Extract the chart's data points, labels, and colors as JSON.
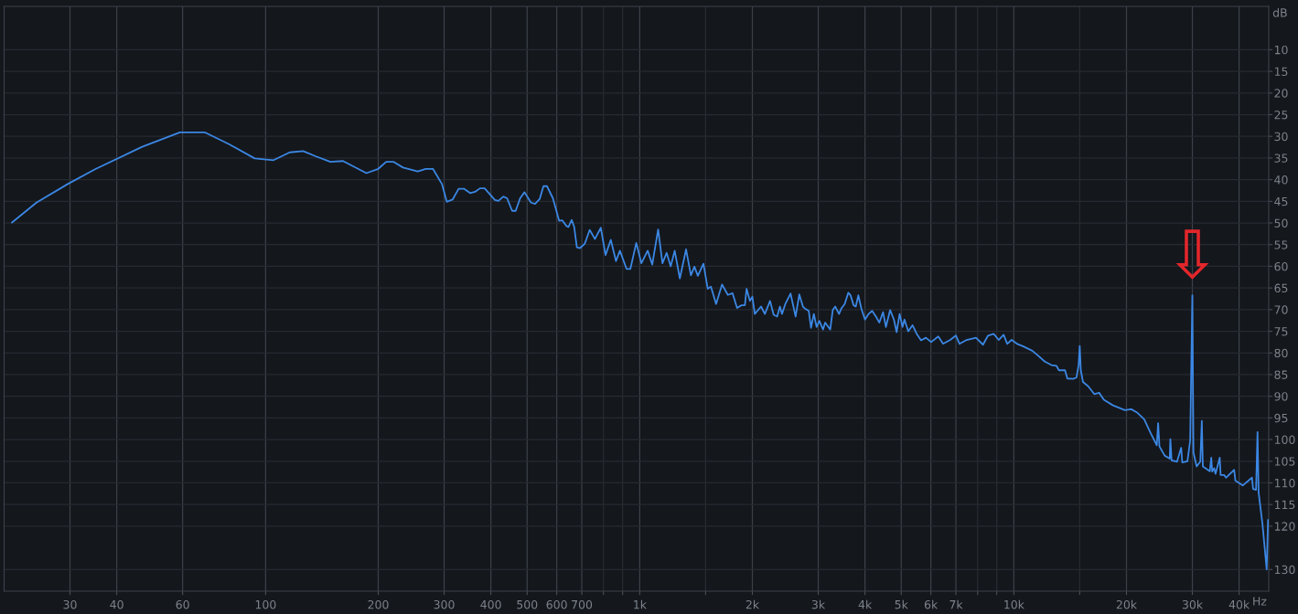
{
  "chart_data": {
    "type": "line",
    "xlabel": "Hz",
    "ylabel": "dB",
    "log": "x",
    "grid": true,
    "xlim": [
      20,
      48000
    ],
    "ylim": [
      135,
      0
    ],
    "xticks": [
      30,
      40,
      60,
      100,
      200,
      300,
      400,
      500,
      600,
      700,
      {
        "value": 800,
        "label": null
      },
      {
        "value": 900,
        "label": null
      },
      {
        "value": 1000,
        "label": "1k"
      },
      {
        "value": 1500,
        "label": null
      },
      {
        "value": 2000,
        "label": "2k"
      },
      {
        "value": 3000,
        "label": "3k"
      },
      {
        "value": 4000,
        "label": "4k"
      },
      {
        "value": 5000,
        "label": "5k"
      },
      {
        "value": 6000,
        "label": "6k"
      },
      {
        "value": 7000,
        "label": "7k"
      },
      {
        "value": 8000,
        "label": null
      },
      {
        "value": 9000,
        "label": null
      },
      {
        "value": 10000,
        "label": "10k"
      },
      {
        "value": 15000,
        "label": null
      },
      {
        "value": 20000,
        "label": "20k"
      },
      {
        "value": 30000,
        "label": "30k"
      },
      {
        "value": 40000,
        "label": "40k"
      }
    ],
    "yticks": [
      10,
      15,
      20,
      25,
      30,
      35,
      40,
      45,
      50,
      55,
      60,
      65,
      70,
      75,
      80,
      85,
      90,
      95,
      100,
      105,
      110,
      115,
      120,
      130
    ],
    "annotations": [
      {
        "text": "⇩",
        "x": 30000,
        "y": 66.7
      }
    ],
    "x": [
      21,
      24.4,
      29.6,
      35,
      46.8,
      59,
      68.9,
      79.8,
      93.5,
      105,
      116,
      126,
      136,
      149,
      161,
      186,
      200,
      210,
      220,
      233,
      255,
      268,
      280,
      296,
      305,
      316,
      328,
      339,
      352,
      363,
      374,
      385,
      410,
      419,
      432,
      442,
      456,
      466,
      479,
      492,
      512,
      525,
      540,
      553,
      565,
      586,
      609,
      621,
      637,
      645,
      658,
      668,
      679,
      692,
      713,
      735,
      759,
      787,
      810,
      837,
      864,
      885,
      922,
      944,
      979,
      1010,
      1050,
      1080,
      1120,
      1150,
      1180,
      1210,
      1240,
      1280,
      1330,
      1370,
      1400,
      1430,
      1480,
      1520,
      1550,
      1600,
      1660,
      1720,
      1770,
      1820,
      1870,
      1910,
      1930,
      1970,
      2000,
      2030,
      2110,
      2160,
      2230,
      2280,
      2330,
      2370,
      2400,
      2450,
      2530,
      2610,
      2670,
      2730,
      2760,
      2830,
      2870,
      2920,
      2970,
      3020,
      3090,
      3130,
      3230,
      3280,
      3330,
      3410,
      3460,
      3530,
      3610,
      3660,
      3730,
      3780,
      3840,
      3910,
      4000,
      4090,
      4180,
      4280,
      4370,
      4470,
      4550,
      4670,
      4780,
      4860,
      4950,
      5040,
      5100,
      5220,
      5360,
      5500,
      5650,
      5820,
      6010,
      6280,
      6470,
      6760,
      7000,
      7160,
      7480,
      7920,
      8270,
      8530,
      8830,
      9110,
      9390,
      9600,
      9860,
      10200,
      10600,
      11200,
      11600,
      12100,
      12600,
      13000,
      13200,
      13700,
      13900,
      14400,
      14700,
      14900,
      15000,
      15100,
      15300,
      15800,
      16400,
      16900,
      17400,
      18400,
      19800,
      20600,
      21300,
      22300,
      23200,
      24100,
      24300,
      24500,
      25300,
      26100,
      26200,
      26400,
      27300,
      28000,
      28200,
      29100,
      29600,
      30000,
      30200,
      30800,
      31500,
      31800,
      32000,
      33400,
      33700,
      33900,
      34300,
      34600,
      35500,
      35700,
      36500,
      36900,
      38800,
      39100,
      40900,
      43300,
      43600,
      44400,
      44800,
      45100,
      46200,
      47400,
      47800
    ],
    "series": [
      {
        "color": "#3b87e4",
        "values": [
          49.9,
          45.3,
          41,
          37.6,
          32.4,
          29.1,
          29.1,
          31.8,
          35.1,
          35.5,
          33.7,
          33.4,
          34.6,
          35.9,
          35.7,
          38.5,
          37.5,
          35.9,
          35.9,
          37.2,
          38.1,
          37.5,
          37.5,
          41,
          45.1,
          44.6,
          42.1,
          42.1,
          43.1,
          42.8,
          42,
          42,
          44.7,
          44.9,
          43.9,
          44.3,
          47.2,
          47.2,
          44.3,
          42.9,
          45.3,
          45.6,
          44.5,
          41.5,
          41.5,
          44.3,
          49.5,
          49.4,
          50.7,
          50.9,
          49.3,
          50.9,
          55.6,
          55.8,
          54.8,
          51.6,
          53.7,
          51.1,
          57.4,
          53.9,
          58.8,
          56.4,
          60.6,
          60.6,
          54.6,
          59.3,
          56.4,
          59.6,
          51.5,
          59.3,
          56.9,
          60,
          56.4,
          62.8,
          56.1,
          62.1,
          60.1,
          62.2,
          59.4,
          65.2,
          64.7,
          68.7,
          64.2,
          66.6,
          66.2,
          69.6,
          69,
          69,
          65.2,
          68,
          67,
          71,
          69.3,
          71,
          68,
          71.2,
          71.6,
          69.3,
          71,
          68.7,
          66.3,
          71.6,
          66.5,
          69.3,
          69.7,
          70.3,
          74.2,
          71,
          74,
          72.6,
          74.6,
          73,
          74.6,
          70.1,
          69.3,
          71,
          69.7,
          68.7,
          66.1,
          66.7,
          69,
          69.3,
          66.7,
          69.7,
          72.3,
          71,
          70.3,
          71.6,
          73,
          70.6,
          74,
          70.1,
          72.3,
          75.2,
          71,
          74,
          72.3,
          75,
          73.6,
          75.6,
          77.1,
          76.5,
          77.5,
          76.2,
          77.9,
          77,
          76,
          77.9,
          77,
          76.5,
          78.1,
          76,
          75.6,
          77,
          75.8,
          77.9,
          77,
          77.9,
          78.5,
          79.5,
          80.6,
          82,
          82.8,
          83,
          84,
          84,
          85.9,
          86,
          85.7,
          82.7,
          78.4,
          84,
          86.7,
          87.7,
          89.5,
          89.2,
          90.8,
          92.1,
          93.2,
          93,
          93.7,
          95.3,
          98.5,
          101.3,
          96.2,
          101.6,
          103.7,
          104.4,
          99.9,
          104.8,
          105.1,
          101.9,
          105.3,
          105,
          100.2,
          66.7,
          103,
          106.2,
          105.1,
          95.7,
          106.2,
          107.3,
          104.2,
          107.4,
          106.6,
          107.9,
          104.2,
          108.2,
          108.2,
          108.8,
          107,
          109.5,
          110.6,
          108.8,
          111.4,
          111.6,
          98.3,
          112.2,
          119.6,
          130,
          118.6
        ]
      }
    ]
  }
}
